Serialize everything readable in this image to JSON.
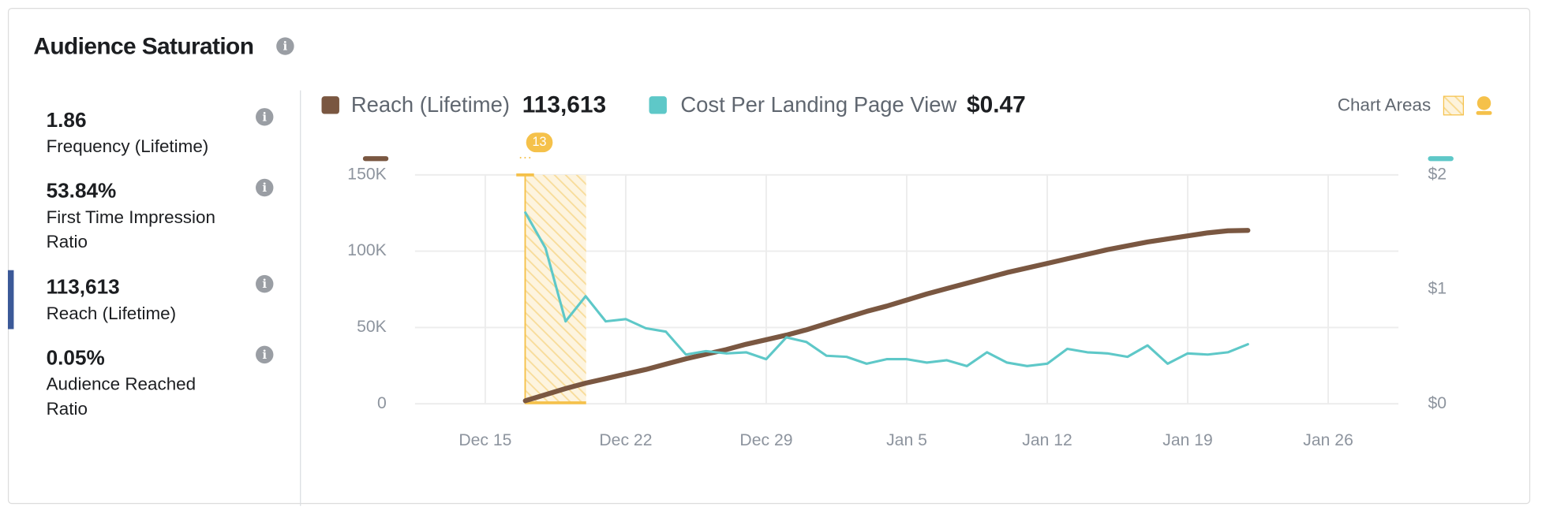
{
  "panel": {
    "title": "Audience Saturation",
    "metrics": [
      {
        "value": "1.86",
        "label": "Frequency (Lifetime)"
      },
      {
        "value": "53.84%",
        "label": "First Time Impression Ratio"
      },
      {
        "value": "113,613",
        "label": "Reach (Lifetime)"
      },
      {
        "value": "0.05%",
        "label": "Audience Reached Ratio"
      }
    ],
    "chart_areas": "Chart Areas"
  },
  "chart_data": {
    "type": "line",
    "categories": [
      null,
      null,
      null,
      "Dec 15",
      null,
      null,
      null,
      null,
      null,
      null,
      "Dec 22",
      null,
      null,
      null,
      null,
      null,
      null,
      "Dec 29",
      null,
      null,
      null,
      null,
      null,
      null,
      "Jan 5",
      null,
      null,
      null,
      null,
      null,
      null,
      "Jan 12",
      null,
      null,
      null,
      null,
      null,
      null,
      "Jan 19",
      null,
      null,
      null,
      null,
      null,
      null,
      "Jan 26",
      null,
      null,
      null
    ],
    "annotation": "13",
    "series": [
      {
        "name": "Reach (Lifetime)",
        "total": "113,613",
        "color": "#7a5741",
        "values": [
          null,
          null,
          null,
          null,
          null,
          2000,
          6000,
          10000,
          13500,
          16500,
          19500,
          22500,
          26000,
          29500,
          32500,
          35500,
          39000,
          42000,
          45000,
          48500,
          52500,
          56500,
          60500,
          64000,
          68000,
          72000,
          75500,
          79000,
          82500,
          86000,
          89000,
          92000,
          95000,
          98000,
          101000,
          103500,
          106000,
          108000,
          110000,
          112000,
          113400,
          113613,
          null,
          null,
          null,
          null,
          null,
          null,
          null
        ]
      },
      {
        "name": "Cost Per Landing Page View",
        "total": "$0.47",
        "color": "#5ec8c8",
        "axis": "y2",
        "values": [
          null,
          null,
          null,
          null,
          null,
          1.67,
          1.36,
          0.72,
          0.94,
          0.72,
          0.74,
          0.66,
          0.63,
          0.43,
          0.46,
          0.44,
          0.45,
          0.39,
          0.58,
          0.54,
          0.42,
          0.41,
          0.35,
          0.39,
          0.39,
          0.36,
          0.38,
          0.33,
          0.45,
          0.36,
          0.33,
          0.35,
          0.48,
          0.45,
          0.44,
          0.41,
          0.51,
          0.35,
          0.44,
          0.43,
          0.45,
          0.52,
          null,
          null,
          null,
          null,
          null,
          null,
          null
        ]
      }
    ],
    "ylim": [
      0,
      150000
    ],
    "yticks": [
      0,
      {
        "value": 50000,
        "label": "50K"
      },
      {
        "value": 100000,
        "label": "100K"
      },
      {
        "value": 150000,
        "label": "150K"
      }
    ],
    "y2lim": [
      0,
      2
    ],
    "y2ticks": [
      {
        "value": 0,
        "label": "$0"
      },
      {
        "value": 1,
        "label": "$1"
      },
      {
        "value": 2,
        "label": "$2"
      }
    ],
    "grid": true
  }
}
